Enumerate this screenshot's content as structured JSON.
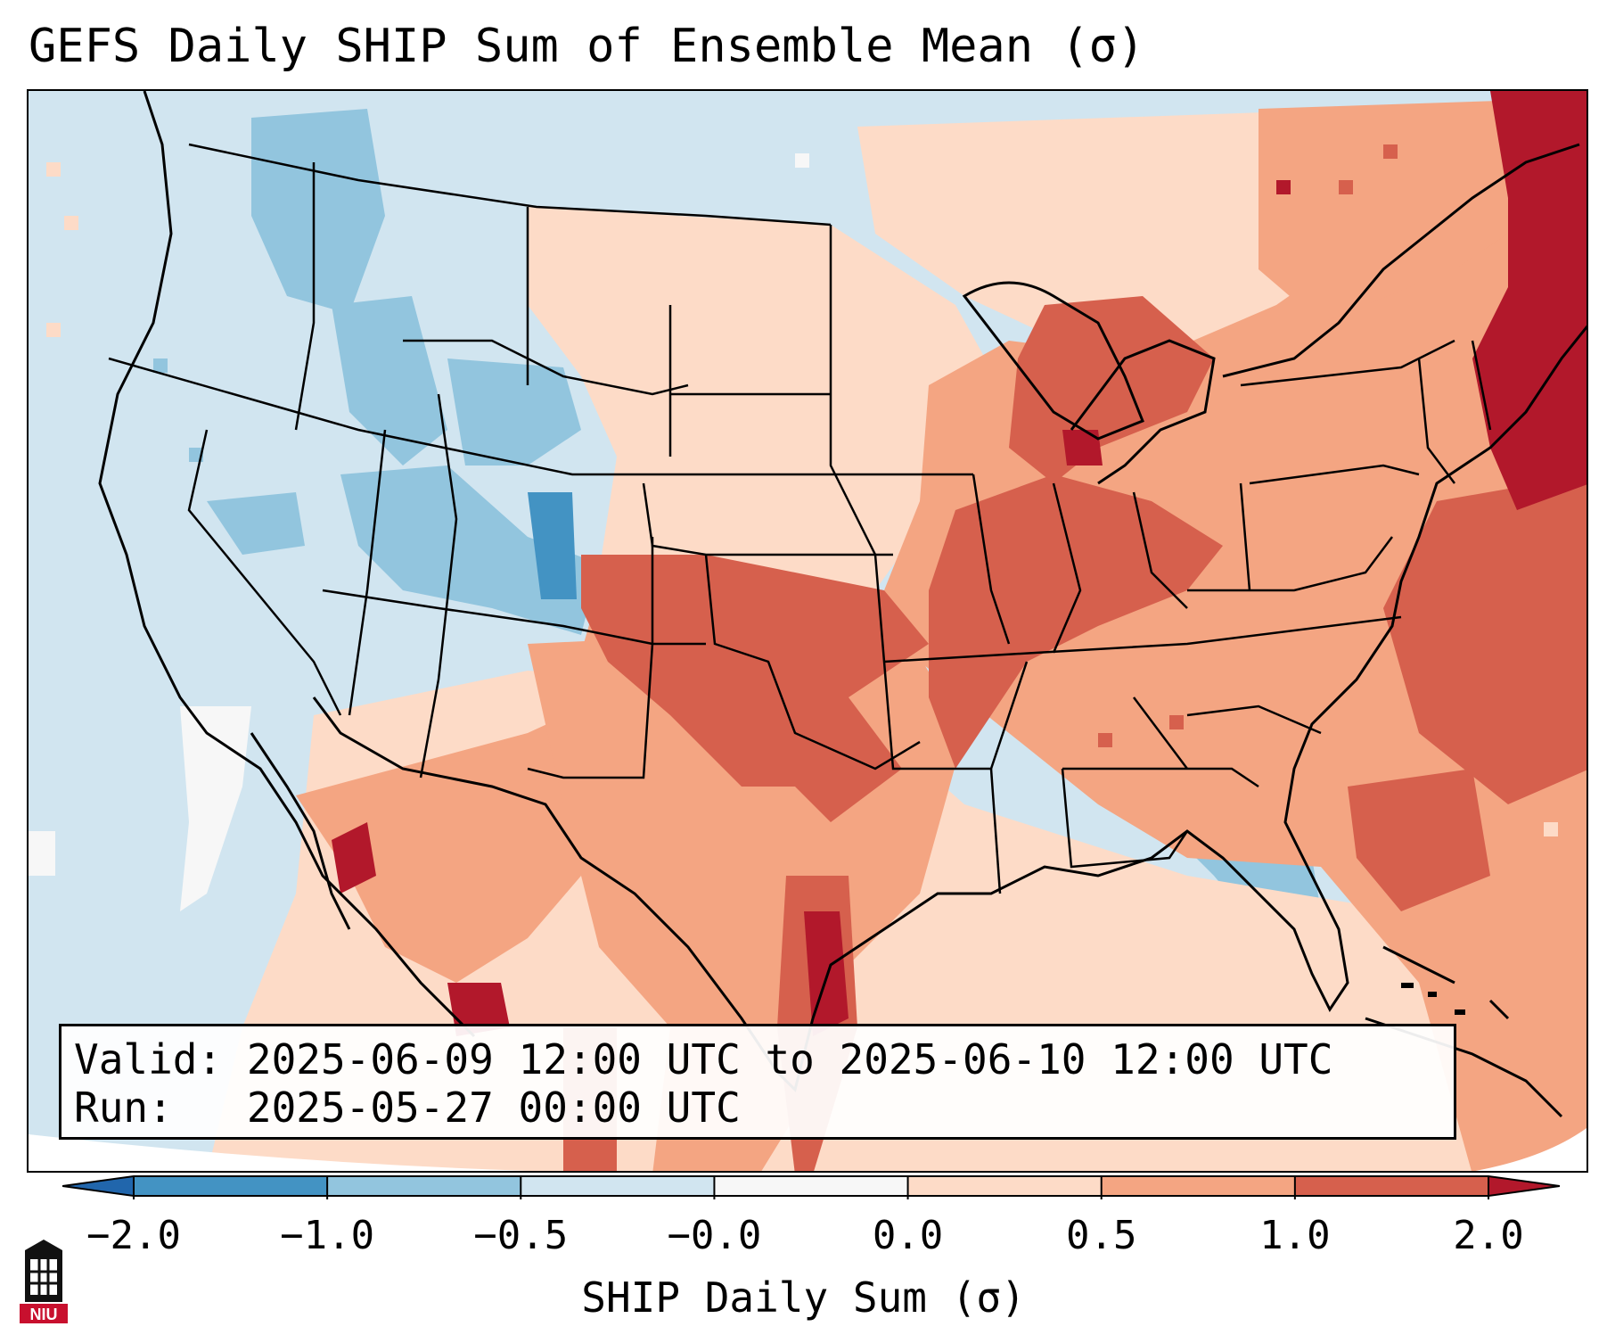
{
  "title": "GEFS Daily SHIP Sum of Ensemble Mean (σ)",
  "info": {
    "valid_label": "Valid:",
    "valid_value": "2025-06-09 12:00 UTC to 2025-06-10 12:00 UTC",
    "run_label": "Run:",
    "run_value": "2025-05-27 00:00 UTC"
  },
  "colorbar": {
    "title": "SHIP Daily Sum (σ)",
    "ticks": [
      "−2.0",
      "−1.0",
      "−0.5",
      "−0.0",
      "0.0",
      "0.5",
      "1.0",
      "2.0"
    ],
    "bins": [
      {
        "min": -2.0,
        "max": -1.0,
        "color": "#4393c3"
      },
      {
        "min": -1.0,
        "max": -0.5,
        "color": "#92c5de"
      },
      {
        "min": -0.5,
        "max": 0.0,
        "color": "#d1e5f0"
      },
      {
        "min": 0.0,
        "max": 0.0,
        "color": "#f7f7f7"
      },
      {
        "min": 0.0,
        "max": 0.5,
        "color": "#fddbc7"
      },
      {
        "min": 0.5,
        "max": 1.0,
        "color": "#f4a582"
      },
      {
        "min": 1.0,
        "max": 2.0,
        "color": "#d6604d"
      }
    ],
    "under_color": "#2166ac",
    "over_color": "#b2182b"
  },
  "logo_text": "NIU",
  "colors": {
    "very_neg": "#4393c3",
    "neg": "#92c5de",
    "slight_neg": "#d1e5f0",
    "neutral": "#f7f7f7",
    "slight_pos": "#fddbc7",
    "pos": "#f4a582",
    "strong_pos": "#d6604d",
    "extreme_pos": "#b2182b"
  }
}
